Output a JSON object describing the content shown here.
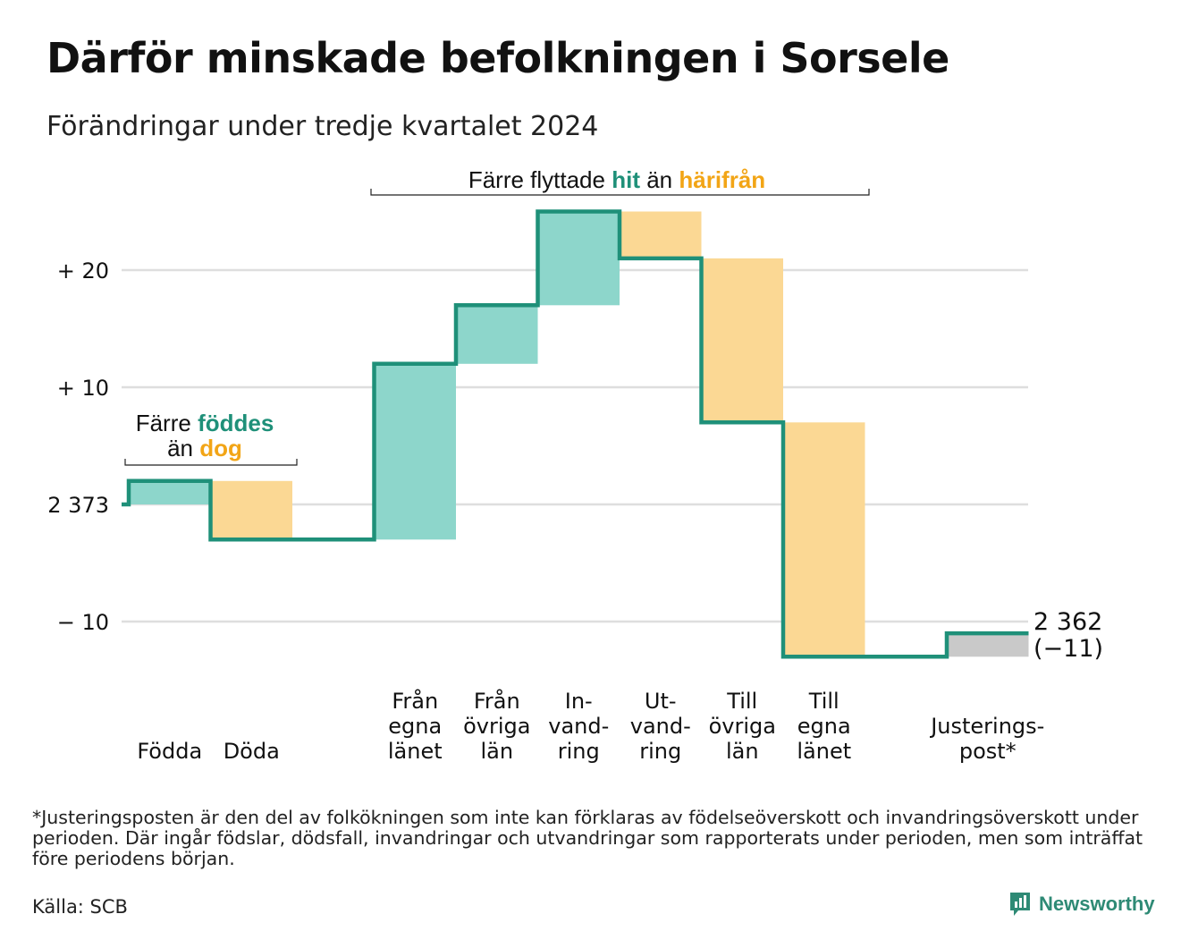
{
  "header": {
    "title": "Därför minskade befolkningen i Sorsele",
    "subtitle": "Förändringar under tredje kvartalet 2024"
  },
  "annotations": {
    "births_deaths": {
      "line1": "Färre",
      "hl1": "föddes",
      "line2": "än",
      "hl2": "dog"
    },
    "migration": {
      "pre": "Färre flyttade",
      "hl1": "hit",
      "mid": "än",
      "hl2": "härifrån"
    }
  },
  "colors": {
    "inflow_fill": "#8dd6cb",
    "outflow_fill": "#fbd894",
    "adjustment_fill": "#c9c9c9",
    "step_line": "#1f9079",
    "highlight_in": "#1f9079",
    "highlight_out": "#f2a516",
    "gridline": "#dedede"
  },
  "chart_data": {
    "type": "waterfall",
    "title": "Därför minskade befolkningen i Sorsele",
    "subtitle": "Förändringar under tredje kvartalet 2024",
    "start_value": 2373,
    "end_value": 2362,
    "net_change": -11,
    "end_label": [
      "2 362",
      "(−11)"
    ],
    "y_ticks": [
      {
        "value": 20,
        "label": "+ 20"
      },
      {
        "value": 10,
        "label": "+ 10"
      },
      {
        "value": 0,
        "label": "2 373"
      },
      {
        "value": -10,
        "label": "− 10"
      }
    ],
    "ylim": [
      -12,
      25
    ],
    "steps": [
      {
        "label": [
          "Födda"
        ],
        "change": 2,
        "kind": "in"
      },
      {
        "label": [
          "Döda"
        ],
        "change": -5,
        "kind": "out"
      },
      {
        "label": [],
        "change": 0,
        "kind": "gap"
      },
      {
        "label": [
          "Från",
          "egna",
          "länet"
        ],
        "change": 15,
        "kind": "in"
      },
      {
        "label": [
          "Från",
          "övriga",
          "län"
        ],
        "change": 5,
        "kind": "in"
      },
      {
        "label": [
          "In-",
          "vand-",
          "ring"
        ],
        "change": 8,
        "kind": "in"
      },
      {
        "label": [
          "Ut-",
          "vand-",
          "ring"
        ],
        "change": -4,
        "kind": "out"
      },
      {
        "label": [
          "Till",
          "övriga",
          "län"
        ],
        "change": -14,
        "kind": "out"
      },
      {
        "label": [
          "Till",
          "egna",
          "länet"
        ],
        "change": -20,
        "kind": "out"
      },
      {
        "label": [],
        "change": 0,
        "kind": "gap"
      },
      {
        "label": [
          "Justerings-",
          "post*"
        ],
        "change": 2,
        "kind": "adj"
      }
    ]
  },
  "footnote": "*Justeringsposten är den del av folkökningen som inte kan förklaras av födelseöverskott och invandringsöverskott under perioden. Där ingår födslar, dödsfall, invandringar och utvandringar som rapporterats under perioden, men som inträffat före periodens början.",
  "source": "Källa: SCB",
  "brand": {
    "name": "Newsworthy"
  }
}
